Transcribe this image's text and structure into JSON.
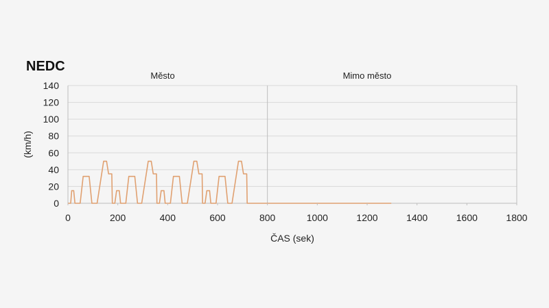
{
  "chart_data": {
    "type": "line",
    "title": "NEDC",
    "xlabel": "ČAS (sek)",
    "ylabel": "(km/h)",
    "xlim": [
      0,
      1800
    ],
    "ylim": [
      0,
      140
    ],
    "x_ticks": [
      0,
      200,
      400,
      600,
      800,
      1000,
      1200,
      1400,
      1600,
      1800
    ],
    "y_ticks": [
      0,
      20,
      40,
      60,
      80,
      100,
      120,
      140
    ],
    "grid": "horizontal",
    "annotations": [
      {
        "text": "Město",
        "x": 380
      },
      {
        "text": "Mimo město",
        "x": 1200
      }
    ],
    "divider_x": 800,
    "colors": {
      "line": "#e0a070",
      "grid": "#d9d9d9",
      "axis": "#bdbdbd",
      "text": "#222222"
    },
    "series": [
      {
        "x": [
          0,
          11,
          15,
          23,
          28,
          49,
          61,
          85,
          96,
          112,
          117,
          143,
          155,
          163,
          176,
          178,
          188,
          195,
          206,
          211,
          232,
          244,
          268,
          279,
          291,
          296,
          322,
          334,
          342,
          355,
          357,
          367,
          374,
          385,
          390,
          411,
          423,
          447,
          458,
          474,
          479,
          505,
          517,
          525,
          538,
          540,
          550,
          557,
          568,
          573,
          594,
          606,
          630,
          641,
          653,
          658,
          684,
          696,
          704,
          717,
          719,
          729,
          736,
          747,
          752,
          773,
          785,
          809,
          820,
          836,
          841,
          867,
          879,
          887,
          900,
          902,
          912,
          919,
          930,
          935,
          956,
          968,
          992,
          1003,
          1015,
          1020,
          1046,
          1058,
          1066,
          1079,
          1081,
          1091,
          1098,
          1109,
          1114,
          1135,
          1147,
          1171,
          1182,
          1198,
          1208,
          1234,
          1246,
          1254,
          1267,
          1269,
          1279,
          1286,
          1297
        ],
        "y": [
          0,
          0,
          15,
          15,
          0,
          0,
          32,
          32,
          0,
          0,
          0,
          50,
          50,
          35,
          35,
          0,
          0,
          15,
          15,
          0,
          0,
          32,
          32,
          0,
          0,
          0,
          50,
          50,
          35,
          35,
          0,
          0,
          15,
          15,
          0,
          0,
          32,
          32,
          0,
          0,
          0,
          50,
          50,
          35,
          35,
          0,
          0,
          15,
          15,
          0,
          0,
          32,
          32,
          0,
          0,
          0,
          50,
          50,
          35,
          35,
          0,
          0,
          0,
          0,
          0,
          0,
          0,
          0,
          0,
          0,
          0,
          0,
          0,
          0,
          0,
          0,
          0,
          0,
          0,
          0,
          0,
          0,
          0,
          0,
          0,
          0,
          0,
          0,
          0,
          0,
          0,
          0,
          0,
          0,
          0,
          0,
          0,
          0,
          0,
          0,
          0,
          0,
          0,
          0,
          0,
          0,
          0,
          0,
          0
        ]
      }
    ]
  }
}
